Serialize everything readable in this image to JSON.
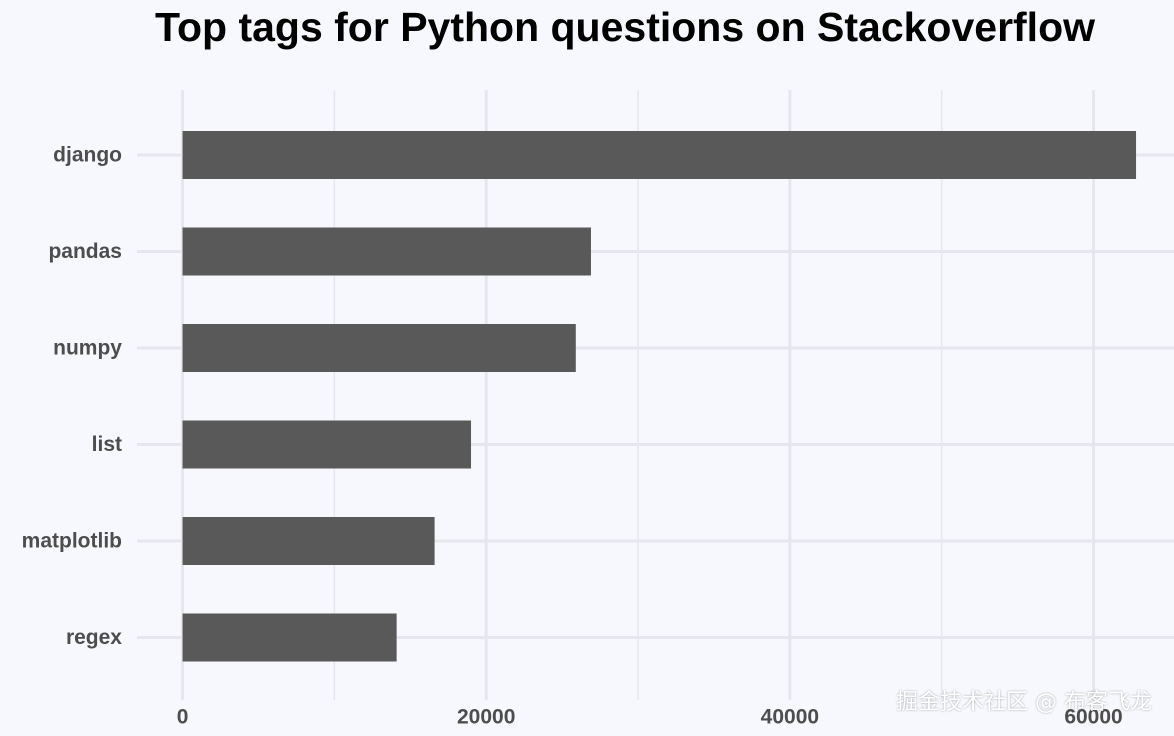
{
  "chart_data": {
    "type": "bar",
    "orientation": "horizontal",
    "title": "Top tags for Python questions on Stackoverflow",
    "xlabel": "",
    "ylabel": "",
    "categories": [
      "django",
      "pandas",
      "numpy",
      "list",
      "matplotlib",
      "regex"
    ],
    "values": [
      62800,
      26900,
      25900,
      19000,
      16600,
      14100
    ],
    "xlim": [
      -3000,
      65300
    ],
    "x_ticks": [
      0,
      20000,
      40000,
      60000
    ],
    "x_tick_labels": [
      "0",
      "20000",
      "40000",
      "60000"
    ],
    "grid": true,
    "legend": "none",
    "colors": {
      "bar": "#595959",
      "background": "#f7f8fd",
      "grid": "#e6e7ee",
      "tick_text": "#4d4d4d",
      "title_text": "#000000"
    }
  },
  "watermark": "掘金技术社区 @ 布客飞龙"
}
